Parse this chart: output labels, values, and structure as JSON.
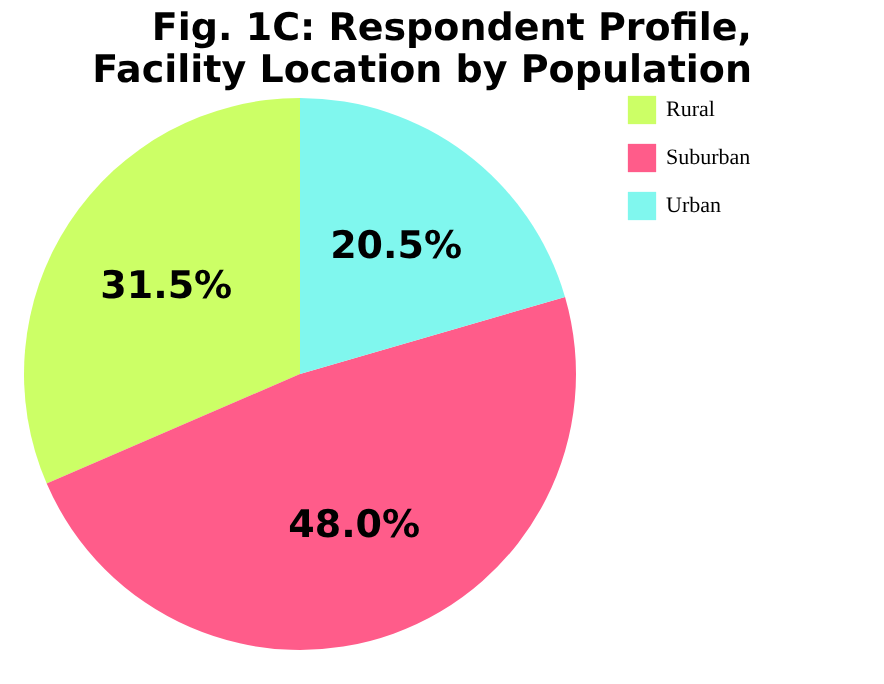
{
  "chart_data": {
    "type": "pie",
    "title": "Fig. 1C: Respondent Profile,\nFacility Location by Population",
    "categories": [
      "Rural",
      "Suburban",
      "Urban"
    ],
    "values": [
      31.5,
      48.0,
      20.5
    ],
    "colors": [
      "#ccff66",
      "#ff5c8a",
      "#80f7ee"
    ],
    "value_labels": [
      "31.5%",
      "48.0%",
      "20.5%"
    ],
    "legend": "right"
  }
}
